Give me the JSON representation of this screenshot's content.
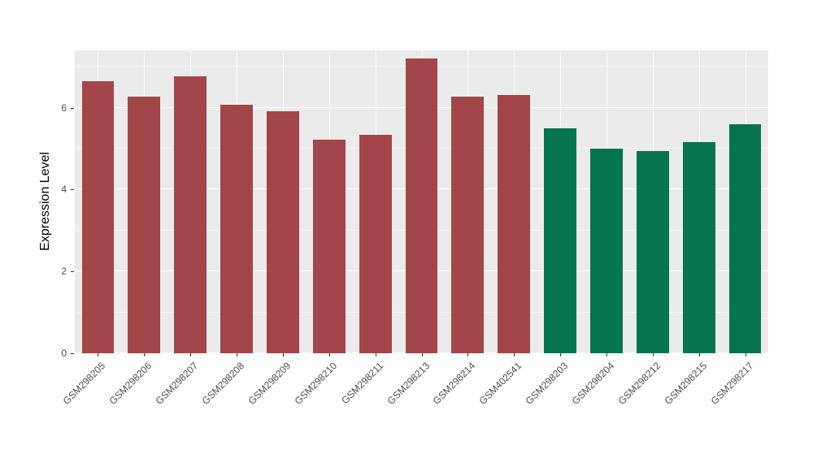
{
  "chart_data": {
    "type": "bar",
    "title": "",
    "xlabel": "",
    "ylabel": "Expression Level",
    "ylim": [
      0,
      7.4
    ],
    "yticks_major": [
      0,
      2,
      4,
      6
    ],
    "yticks_minor": [
      1,
      3,
      5,
      7
    ],
    "grid": true,
    "legend": "none",
    "panel_background": "#EBEBEB",
    "gridline_color": "#FFFFFF",
    "groups": [
      {
        "name": "group-red",
        "color": "#A34649"
      },
      {
        "name": "group-green",
        "color": "#067351"
      }
    ],
    "categories": [
      "GSM298205",
      "GSM298206",
      "GSM298207",
      "GSM298208",
      "GSM298209",
      "GSM298210",
      "GSM298211",
      "GSM298213",
      "GSM298214",
      "GSM402541",
      "GSM298203",
      "GSM298204",
      "GSM298212",
      "GSM298215",
      "GSM298217"
    ],
    "bars": [
      {
        "label": "GSM298205",
        "value": 6.65,
        "group": 0
      },
      {
        "label": "GSM298206",
        "value": 6.27,
        "group": 0
      },
      {
        "label": "GSM298207",
        "value": 6.76,
        "group": 0
      },
      {
        "label": "GSM298208",
        "value": 6.07,
        "group": 0
      },
      {
        "label": "GSM298209",
        "value": 5.92,
        "group": 0
      },
      {
        "label": "GSM298210",
        "value": 5.22,
        "group": 0
      },
      {
        "label": "GSM298211",
        "value": 5.33,
        "group": 0
      },
      {
        "label": "GSM298213",
        "value": 7.21,
        "group": 0
      },
      {
        "label": "GSM298214",
        "value": 6.27,
        "group": 0
      },
      {
        "label": "GSM402541",
        "value": 6.31,
        "group": 0
      },
      {
        "label": "GSM298203",
        "value": 5.5,
        "group": 1
      },
      {
        "label": "GSM298204",
        "value": 4.99,
        "group": 1
      },
      {
        "label": "GSM298212",
        "value": 4.95,
        "group": 1
      },
      {
        "label": "GSM298215",
        "value": 5.15,
        "group": 1
      },
      {
        "label": "GSM298217",
        "value": 5.59,
        "group": 1
      }
    ]
  }
}
